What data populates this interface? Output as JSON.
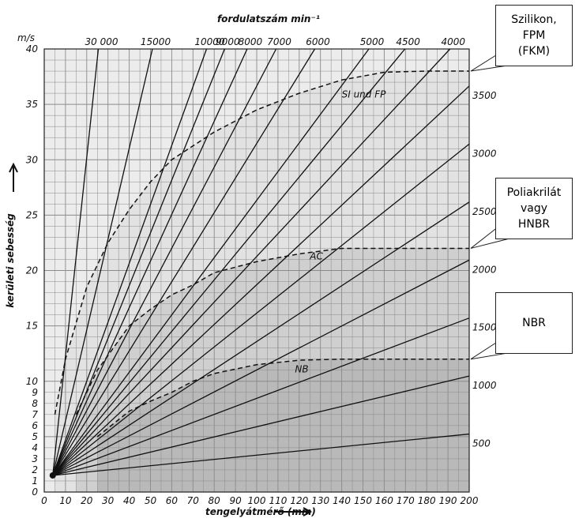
{
  "chart_data": {
    "type": "line",
    "title": "fordulatszám min⁻¹",
    "xlabel": "tengelyátmérő (mm)",
    "ylabel": "kerületi sebesség",
    "yunit": "m/s",
    "xlim": [
      0,
      200
    ],
    "ylim": [
      0,
      40
    ],
    "grid": true,
    "x_ticks": [
      "0",
      "10",
      "20",
      "30",
      "40",
      "50",
      "60",
      "70",
      "80",
      "90",
      "100",
      "110",
      "120",
      "130",
      "140",
      "150",
      "160",
      "170",
      "180",
      "190",
      "200"
    ],
    "y_ticks": [
      "0",
      "1",
      "2",
      "3",
      "4",
      "5",
      "6",
      "7",
      "8",
      "9",
      "10",
      "15",
      "20",
      "25",
      "30",
      "35",
      "40"
    ],
    "rpm_lines": [
      30000,
      15000,
      10000,
      9000,
      8000,
      7000,
      6000,
      5000,
      4500,
      4000,
      3500,
      3000,
      2500,
      2000,
      1500,
      1000,
      500
    ],
    "top_labels": [
      "30 000",
      "15000",
      "10000",
      "9000",
      "8000",
      "7000",
      "6000",
      "5000",
      "4500",
      "4000"
    ],
    "right_labels": [
      "3500",
      "3000",
      "2500",
      "2000",
      "1500",
      "1000",
      "500"
    ],
    "series": [
      {
        "name": "SI und FP",
        "limit": 38,
        "points": [
          [
            5,
            7
          ],
          [
            10,
            12
          ],
          [
            20,
            18.5
          ],
          [
            30,
            22.5
          ],
          [
            40,
            25.5
          ],
          [
            50,
            28
          ],
          [
            60,
            30
          ],
          [
            80,
            32.5
          ],
          [
            100,
            34.5
          ],
          [
            120,
            36
          ],
          [
            140,
            37.2
          ],
          [
            160,
            37.9
          ],
          [
            180,
            38
          ],
          [
            200,
            38
          ]
        ]
      },
      {
        "name": "AC",
        "limit": 22,
        "points": [
          [
            15,
            7
          ],
          [
            25,
            11
          ],
          [
            40,
            15
          ],
          [
            50,
            16.5
          ],
          [
            60,
            17.8
          ],
          [
            70,
            18.7
          ],
          [
            80,
            19.8
          ],
          [
            100,
            20.8
          ],
          [
            120,
            21.5
          ],
          [
            140,
            22
          ],
          [
            160,
            22
          ],
          [
            200,
            22
          ]
        ]
      },
      {
        "name": "NB",
        "limit": 12,
        "points": [
          [
            25,
            5
          ],
          [
            40,
            7.3
          ],
          [
            50,
            8.2
          ],
          [
            60,
            9
          ],
          [
            70,
            10
          ],
          [
            80,
            10.7
          ],
          [
            100,
            11.5
          ],
          [
            120,
            11.9
          ],
          [
            140,
            12
          ],
          [
            200,
            12
          ]
        ]
      }
    ]
  },
  "callouts": [
    {
      "text": "Szilikon,\nFPM\n(FKM)",
      "target_y": 38
    },
    {
      "text": "Poliakrilát\nvagy\nHNBR",
      "target_y": 22
    },
    {
      "text": "NBR",
      "target_y": 12
    }
  ],
  "colors": {
    "bg": "#ececec",
    "zone_si": "#e2e2e2",
    "zone_ac": "#cfcfcf",
    "zone_nb": "#b9b9b9",
    "line": "#111111",
    "grid": "#8a8a8a"
  }
}
